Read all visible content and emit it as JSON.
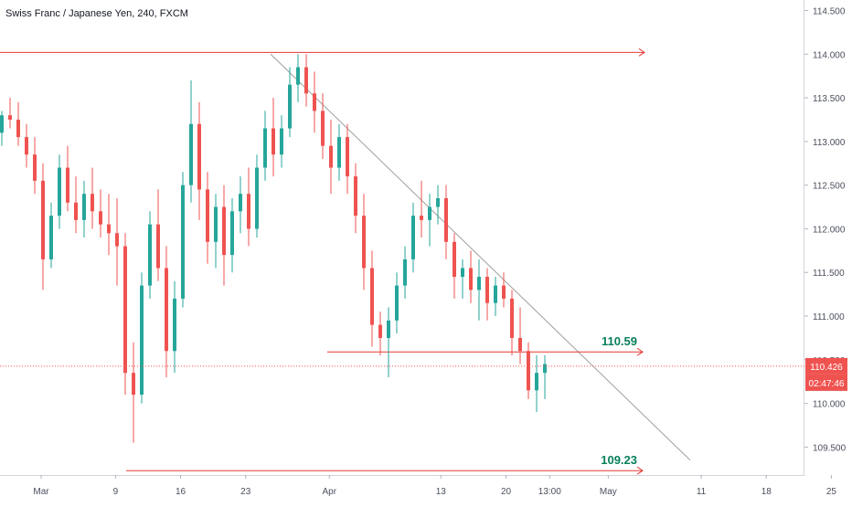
{
  "chart_data": {
    "type": "candlestick",
    "title": "Swiss Franc / Japanese Yen, 240, FXCM",
    "symbol": "CHFJPY",
    "interval": "240",
    "source": "FXCM",
    "ylim": [
      109.18,
      114.62
    ],
    "y_ticks": [
      "114.500",
      "114.000",
      "113.500",
      "113.000",
      "112.500",
      "112.000",
      "111.500",
      "111.000",
      "110.500",
      "110.000",
      "109.500"
    ],
    "x_ticks": [
      "Mar",
      "9",
      "16",
      "23",
      "Apr",
      "13",
      "20",
      "13:00",
      "May",
      "11",
      "18",
      "25"
    ],
    "last_price": "110.426",
    "countdown": "02:47:46",
    "colors": {
      "up": "#26a69a",
      "down": "#ef5350",
      "level_line": "#e53935",
      "trend_line": "#9e9e9e",
      "label_text": "#087f5b",
      "price_badge": "#ef5350"
    },
    "levels": [
      {
        "price": 114.02,
        "label": ""
      },
      {
        "price": 110.59,
        "label": "110.59"
      },
      {
        "price": 109.23,
        "label": "109.23"
      }
    ],
    "trendline": [
      {
        "date": "Mar 27",
        "price": 114.0
      },
      {
        "date": "May 15",
        "price": 109.35
      }
    ],
    "ohlc": [
      [
        113.1,
        113.35,
        112.95,
        113.3
      ],
      [
        113.3,
        113.5,
        113.15,
        113.25
      ],
      [
        113.25,
        113.45,
        112.95,
        113.05
      ],
      [
        113.05,
        113.2,
        112.7,
        112.85
      ],
      [
        112.85,
        113.05,
        112.4,
        112.55
      ],
      [
        112.55,
        112.75,
        111.3,
        111.65
      ],
      [
        111.65,
        112.3,
        111.55,
        112.15
      ],
      [
        112.15,
        112.85,
        112.0,
        112.7
      ],
      [
        112.7,
        112.95,
        112.2,
        112.3
      ],
      [
        112.3,
        112.6,
        111.95,
        112.1
      ],
      [
        112.1,
        112.55,
        111.9,
        112.4
      ],
      [
        112.4,
        112.7,
        112.0,
        112.2
      ],
      [
        112.2,
        112.45,
        111.9,
        112.05
      ],
      [
        112.05,
        112.4,
        111.7,
        111.95
      ],
      [
        111.95,
        112.35,
        111.35,
        111.8
      ],
      [
        111.8,
        111.95,
        110.1,
        110.35
      ],
      [
        110.35,
        110.7,
        109.55,
        110.1
      ],
      [
        110.1,
        111.5,
        110.0,
        111.35
      ],
      [
        111.35,
        112.2,
        111.2,
        112.05
      ],
      [
        112.05,
        112.45,
        111.4,
        111.55
      ],
      [
        111.55,
        111.8,
        110.3,
        110.6
      ],
      [
        110.6,
        111.4,
        110.35,
        111.2
      ],
      [
        111.2,
        112.65,
        111.1,
        112.5
      ],
      [
        112.5,
        113.7,
        112.3,
        113.2
      ],
      [
        113.2,
        113.45,
        112.1,
        112.45
      ],
      [
        112.45,
        112.65,
        111.6,
        111.85
      ],
      [
        111.85,
        112.4,
        111.55,
        112.25
      ],
      [
        112.25,
        112.5,
        111.35,
        111.7
      ],
      [
        111.7,
        112.35,
        111.5,
        112.2
      ],
      [
        112.2,
        112.6,
        111.95,
        112.4
      ],
      [
        112.4,
        112.7,
        111.8,
        112.0
      ],
      [
        112.0,
        112.85,
        111.9,
        112.7
      ],
      [
        112.7,
        113.35,
        112.55,
        113.15
      ],
      [
        113.15,
        113.5,
        112.6,
        112.85
      ],
      [
        112.85,
        113.3,
        112.7,
        113.15
      ],
      [
        113.15,
        113.85,
        113.05,
        113.65
      ],
      [
        113.65,
        114.0,
        113.45,
        113.85
      ],
      [
        113.85,
        114.0,
        113.4,
        113.55
      ],
      [
        113.55,
        113.8,
        113.1,
        113.35
      ],
      [
        113.35,
        113.55,
        112.8,
        112.95
      ],
      [
        112.95,
        113.25,
        112.4,
        112.7
      ],
      [
        112.7,
        113.2,
        112.55,
        113.05
      ],
      [
        113.05,
        113.2,
        112.4,
        112.6
      ],
      [
        112.6,
        112.75,
        111.95,
        112.15
      ],
      [
        112.15,
        112.4,
        111.3,
        111.55
      ],
      [
        111.55,
        111.75,
        110.65,
        110.9
      ],
      [
        110.9,
        111.05,
        110.55,
        110.75
      ],
      [
        110.75,
        111.1,
        110.3,
        110.95
      ],
      [
        110.95,
        111.5,
        110.8,
        111.35
      ],
      [
        111.35,
        111.8,
        111.2,
        111.65
      ],
      [
        111.65,
        112.3,
        111.5,
        112.15
      ],
      [
        112.15,
        112.55,
        111.9,
        112.1
      ],
      [
        112.1,
        112.4,
        111.8,
        112.25
      ],
      [
        112.25,
        112.5,
        112.05,
        112.35
      ],
      [
        112.35,
        112.5,
        111.65,
        111.85
      ],
      [
        111.85,
        111.95,
        111.2,
        111.45
      ],
      [
        111.45,
        111.65,
        111.2,
        111.55
      ],
      [
        111.55,
        111.75,
        111.15,
        111.3
      ],
      [
        111.3,
        111.65,
        110.95,
        111.45
      ],
      [
        111.45,
        111.55,
        110.95,
        111.15
      ],
      [
        111.15,
        111.45,
        111.0,
        111.35
      ],
      [
        111.35,
        111.5,
        111.1,
        111.2
      ],
      [
        111.2,
        111.3,
        110.55,
        110.75
      ],
      [
        110.75,
        111.1,
        110.45,
        110.6
      ],
      [
        110.6,
        110.7,
        110.05,
        110.15
      ],
      [
        110.15,
        110.55,
        109.9,
        110.35
      ],
      [
        110.35,
        110.55,
        110.05,
        110.45
      ]
    ]
  }
}
